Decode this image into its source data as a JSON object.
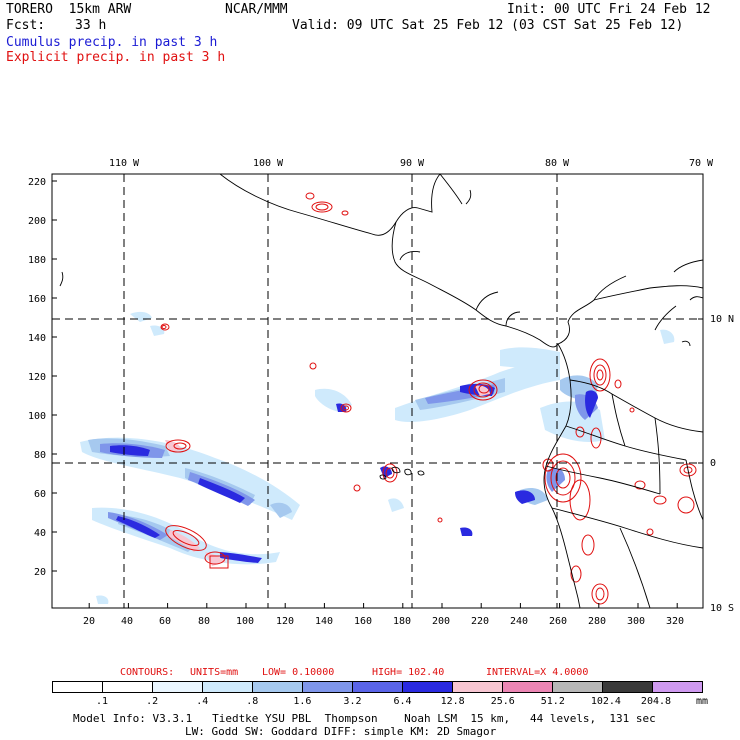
{
  "header": {
    "model": "TORERO  15km ARW",
    "org": "NCAR/MMM",
    "init": "Init: 00 UTC Fri 24 Feb 12",
    "fcst_label": "Fcst:",
    "fcst_value": "33 h",
    "valid": "Valid: 09 UTC Sat 25 Feb 12 (03 CST Sat 25 Feb 12)",
    "line_cumulus": "Cumulus precip. in past 3 h",
    "line_explicit": "Explicit precip. in past 3 h"
  },
  "map": {
    "top_lon_labels": [
      "110 W",
      "100 W",
      "90 W",
      "80 W",
      "70 W"
    ],
    "right_lat_labels": [
      "10 N",
      "0",
      "10 S"
    ],
    "y_ticks": [
      "220",
      "200",
      "180",
      "160",
      "140",
      "120",
      "100",
      "80",
      "60",
      "40",
      "20"
    ],
    "x_ticks": [
      "20",
      "40",
      "60",
      "80",
      "100",
      "120",
      "140",
      "160",
      "180",
      "200",
      "220",
      "240",
      "260",
      "280",
      "300",
      "320"
    ]
  },
  "contours": {
    "title": "CONTOURS:",
    "units": "UNITS=mm",
    "low": "LOW= 0.10000",
    "high": "HIGH= 102.40",
    "interval": "INTERVAL=X 4.0000"
  },
  "colorbar": {
    "unit": "mm",
    "labels": [
      ".1",
      ".2",
      ".4",
      ".8",
      "1.6",
      "3.2",
      "6.4",
      "12.8",
      "25.6",
      "51.2",
      "102.4",
      "204.8"
    ],
    "colors": [
      "#ffffff",
      "#ffffff",
      "#eaf6ff",
      "#cfeafc",
      "#a6c9ef",
      "#7f96ea",
      "#5a64e8",
      "#2a2ae0",
      "#f7c6d2",
      "#ec86b4",
      "#b7b7b7",
      "#3a3a3a",
      "#cf9af0"
    ]
  },
  "footer": {
    "line1": "Model Info: V3.3.1   Tiedtke YSU PBL  Thompson    Noah LSM  15 km,   44 levels,  131 sec",
    "line2": "LW: Godd SW: Goddard DIFF: simple KM: 2D Smagor"
  }
}
